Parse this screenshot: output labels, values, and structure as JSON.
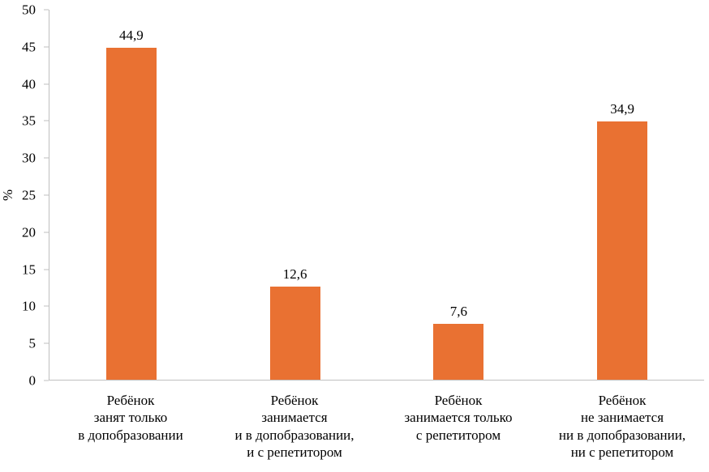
{
  "chart_data": {
    "type": "bar",
    "title": "",
    "xlabel": "",
    "ylabel": "%",
    "ylim": [
      0,
      50
    ],
    "ytick_interval": 5,
    "yticks": [
      0,
      5,
      10,
      15,
      20,
      25,
      30,
      35,
      40,
      45,
      50
    ],
    "grid": false,
    "legend": "none",
    "categories": [
      "Ребёнок\nзанят только\nв допобразовании",
      "Ребёнок\nзанимается\nи в допобразовании,\nи с репетитором",
      "Ребёнок\nзанимается только\nс репетитором",
      "Ребёнок\nне занимается\nни в допобразовании,\nни с репетитором"
    ],
    "values": [
      44.9,
      12.6,
      7.6,
      34.9
    ],
    "value_labels": [
      "44,9",
      "12,6",
      "7,6",
      "34,9"
    ],
    "bar_color": "#e97132",
    "axis_color": "#bfbfbf",
    "text_color": "#000000"
  }
}
